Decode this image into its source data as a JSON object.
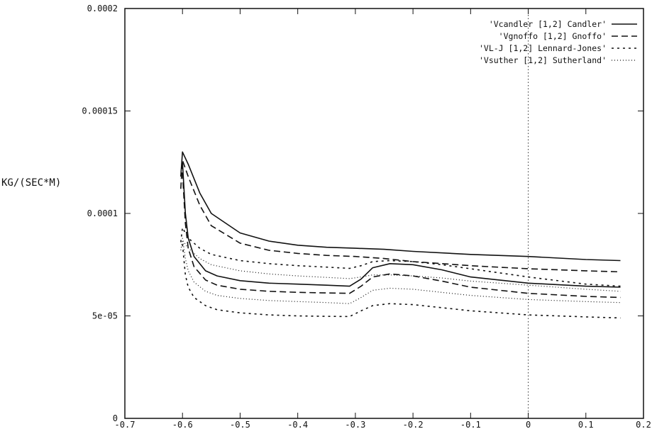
{
  "chart_data": {
    "type": "line",
    "title": "",
    "xlabel": "",
    "ylabel": "KG/(SEC*M)",
    "xlim": [
      -0.7,
      0.2
    ],
    "ylim": [
      0,
      0.0002
    ],
    "x_ticks": [
      -0.7,
      -0.6,
      -0.5,
      -0.4,
      -0.3,
      -0.2,
      -0.1,
      0,
      0.1,
      0.2
    ],
    "x_tick_labels": [
      "-0.7",
      "-0.6",
      "-0.5",
      "-0.4",
      "-0.3",
      "-0.2",
      "-0.1",
      "0",
      "0.1",
      "0.2"
    ],
    "y_ticks": [
      0,
      5e-05,
      0.0001,
      0.00015,
      0.0002
    ],
    "y_tick_labels": [
      "0",
      "5e-05",
      "0.0001",
      "0.00015",
      "0.0002"
    ],
    "grid": false,
    "zero_line": "x=0 dotted vertical",
    "legend_position": "top-right",
    "series": [
      {
        "name": "'Vcandler [1,2] Candler'",
        "style": "solid",
        "curves": [
          {
            "x": [
              -0.603,
              -0.6,
              -0.59,
              -0.57,
              -0.55,
              -0.5,
              -0.45,
              -0.4,
              -0.35,
              -0.3,
              -0.25,
              -0.2,
              -0.1,
              0,
              0.1,
              0.16
            ],
            "y": [
              0.000118,
              0.00013,
              0.000124,
              0.00011,
              0.0001,
              9.05e-05,
              8.65e-05,
              8.45e-05,
              8.35e-05,
              8.3e-05,
              8.25e-05,
              8.15e-05,
              8e-05,
              7.9e-05,
              7.75e-05,
              7.7e-05
            ]
          },
          {
            "x": [
              -0.6,
              -0.595,
              -0.59,
              -0.58,
              -0.56,
              -0.54,
              -0.5,
              -0.45,
              -0.4,
              -0.35,
              -0.31,
              -0.29,
              -0.27,
              -0.24,
              -0.2,
              -0.15,
              -0.1,
              0,
              0.1,
              0.16
            ],
            "y": [
              0.000125,
              0.0001,
              8.8e-05,
              7.9e-05,
              7.2e-05,
              6.95e-05,
              6.72e-05,
              6.6e-05,
              6.55e-05,
              6.5e-05,
              6.45e-05,
              6.8e-05,
              7.35e-05,
              7.55e-05,
              7.5e-05,
              7.25e-05,
              6.9e-05,
              6.6e-05,
              6.45e-05,
              6.4e-05
            ]
          }
        ]
      },
      {
        "name": "'Vgnoffo [1,2] Gnoffo'",
        "style": "dashed",
        "curves": [
          {
            "x": [
              -0.603,
              -0.6,
              -0.59,
              -0.57,
              -0.55,
              -0.5,
              -0.45,
              -0.4,
              -0.35,
              -0.3,
              -0.25,
              -0.2,
              -0.1,
              0,
              0.1,
              0.16
            ],
            "y": [
              0.000112,
              0.000126,
              0.000118,
              0.000104,
              9.4e-05,
              8.55e-05,
              8.2e-05,
              8.05e-05,
              7.95e-05,
              7.9e-05,
              7.8e-05,
              7.65e-05,
              7.45e-05,
              7.3e-05,
              7.2e-05,
              7.15e-05
            ]
          },
          {
            "x": [
              -0.6,
              -0.595,
              -0.59,
              -0.58,
              -0.56,
              -0.54,
              -0.5,
              -0.45,
              -0.4,
              -0.35,
              -0.31,
              -0.29,
              -0.27,
              -0.24,
              -0.2,
              -0.15,
              -0.1,
              0,
              0.1,
              0.16
            ],
            "y": [
              0.00012,
              9.5e-05,
              8.3e-05,
              7.4e-05,
              6.75e-05,
              6.5e-05,
              6.3e-05,
              6.2e-05,
              6.15e-05,
              6.12e-05,
              6.1e-05,
              6.45e-05,
              6.9e-05,
              7.05e-05,
              6.95e-05,
              6.7e-05,
              6.4e-05,
              6.1e-05,
              5.95e-05,
              5.9e-05
            ]
          }
        ]
      },
      {
        "name": "'VL-J [1,2] Lennard-Jones'",
        "style": "short-dashed",
        "curves": [
          {
            "x": [
              -0.603,
              -0.6,
              -0.59,
              -0.57,
              -0.55,
              -0.5,
              -0.45,
              -0.4,
              -0.35,
              -0.31,
              -0.29,
              -0.27,
              -0.24,
              -0.2,
              -0.15,
              -0.1,
              0,
              0.1,
              0.16
            ],
            "y": [
              8.6e-05,
              9.3e-05,
              8.8e-05,
              8.3e-05,
              8e-05,
              7.7e-05,
              7.55e-05,
              7.45e-05,
              7.38e-05,
              7.32e-05,
              7.45e-05,
              7.65e-05,
              7.7e-05,
              7.65e-05,
              7.5e-05,
              7.3e-05,
              6.9e-05,
              6.55e-05,
              6.45e-05
            ]
          },
          {
            "x": [
              -0.6,
              -0.595,
              -0.59,
              -0.58,
              -0.56,
              -0.54,
              -0.5,
              -0.45,
              -0.4,
              -0.35,
              -0.31,
              -0.29,
              -0.27,
              -0.24,
              -0.2,
              -0.15,
              -0.1,
              0,
              0.1,
              0.16
            ],
            "y": [
              8.5e-05,
              7e-05,
              6.4e-05,
              5.9e-05,
              5.5e-05,
              5.3e-05,
              5.15e-05,
              5.05e-05,
              5e-05,
              4.98e-05,
              4.97e-05,
              5.25e-05,
              5.5e-05,
              5.6e-05,
              5.55e-05,
              5.4e-05,
              5.25e-05,
              5.05e-05,
              4.95e-05,
              4.9e-05
            ]
          }
        ]
      },
      {
        "name": "'Vsuther [1,2] Sutherland'",
        "style": "dotted",
        "curves": [
          {
            "x": [
              -0.603,
              -0.6,
              -0.59,
              -0.57,
              -0.55,
              -0.5,
              -0.45,
              -0.4,
              -0.35,
              -0.31,
              -0.29,
              -0.27,
              -0.24,
              -0.2,
              -0.15,
              -0.1,
              0,
              0.1,
              0.16
            ],
            "y": [
              8.2e-05,
              8.7e-05,
              8.3e-05,
              7.8e-05,
              7.5e-05,
              7.2e-05,
              7.05e-05,
              6.95e-05,
              6.88e-05,
              6.82e-05,
              6.9e-05,
              7e-05,
              7e-05,
              6.95e-05,
              6.85e-05,
              6.7e-05,
              6.5e-05,
              6.3e-05,
              6.2e-05
            ]
          },
          {
            "x": [
              -0.6,
              -0.595,
              -0.59,
              -0.58,
              -0.56,
              -0.54,
              -0.5,
              -0.45,
              -0.4,
              -0.35,
              -0.31,
              -0.29,
              -0.27,
              -0.24,
              -0.2,
              -0.15,
              -0.1,
              0,
              0.1,
              0.16
            ],
            "y": [
              8.8e-05,
              7.8e-05,
              7.2e-05,
              6.65e-05,
              6.2e-05,
              6e-05,
              5.85e-05,
              5.75e-05,
              5.7e-05,
              5.65e-05,
              5.6e-05,
              5.9e-05,
              6.25e-05,
              6.35e-05,
              6.3e-05,
              6.15e-05,
              6e-05,
              5.8e-05,
              5.7e-05,
              5.65e-05
            ]
          }
        ]
      }
    ]
  }
}
